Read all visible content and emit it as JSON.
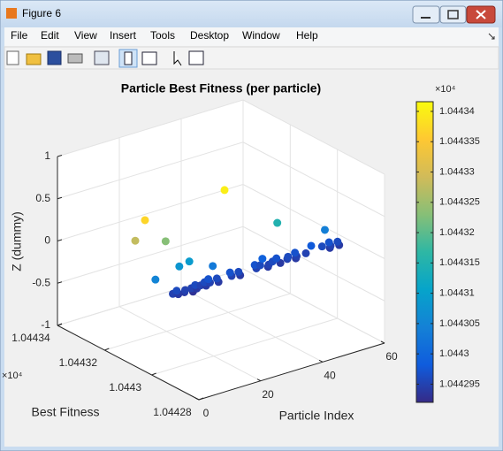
{
  "window": {
    "title": "Figure 6",
    "menu": [
      "File",
      "Edit",
      "View",
      "Insert",
      "Tools",
      "Desktop",
      "Window",
      "Help"
    ]
  },
  "chart_data": {
    "type": "scatter3",
    "title": "Particle Best Fitness (per particle)",
    "xlabel": "Particle Index",
    "ylabel": "Best Fitness",
    "zlabel": "Z (dummy)",
    "y_exponent": "×10⁴",
    "colorbar_exponent": "×10⁴",
    "x": [
      3,
      4,
      5,
      6,
      7,
      8,
      9,
      10,
      11,
      12,
      13,
      14,
      15,
      16,
      17,
      18,
      22,
      23,
      24,
      25,
      30,
      31,
      32,
      33,
      34,
      36,
      37,
      38,
      40,
      41,
      42,
      43,
      44,
      46,
      52,
      53,
      54,
      55,
      56,
      57,
      54,
      26,
      16,
      22,
      52,
      59,
      19,
      15,
      5,
      22,
      35,
      50
    ],
    "y": [
      1.044295,
      1.044294,
      1.044296,
      1.044294,
      1.044295,
      1.044293,
      1.044295,
      1.044294,
      1.044296,
      1.044295,
      1.044294,
      1.044296,
      1.044295,
      1.044297,
      1.044294,
      1.044296,
      1.044295,
      1.044297,
      1.044294,
      1.044296,
      1.044295,
      1.044297,
      1.044296,
      1.044294,
      1.044295,
      1.044296,
      1.044294,
      1.044297,
      1.044295,
      1.044296,
      1.044294,
      1.044295,
      1.044297,
      1.044295,
      1.044296,
      1.044294,
      1.044295,
      1.044297,
      1.044294,
      1.044296,
      1.04434,
      1.044337,
      1.044328,
      1.044323,
      1.044315,
      1.044304,
      1.044309,
      1.044308,
      1.044305,
      1.044303,
      1.044299,
      1.044298
    ],
    "z": [
      0,
      0,
      0,
      0,
      0,
      0,
      0,
      0,
      0,
      0,
      0,
      0,
      0,
      0,
      0,
      0,
      0,
      0,
      0,
      0,
      0,
      0,
      0,
      0,
      0,
      0,
      0,
      0,
      0,
      0,
      0,
      0,
      0,
      0,
      0,
      0,
      0,
      0,
      0,
      0,
      0,
      0,
      0,
      0,
      0,
      0,
      0,
      0,
      0,
      0,
      0,
      0
    ],
    "xlim": [
      0,
      60
    ],
    "xticks": [
      0,
      20,
      40,
      60
    ],
    "ylim": [
      1.04428,
      1.04434
    ],
    "yticks": [
      1.04428,
      1.0443,
      1.04432,
      1.04434
    ],
    "zlim": [
      -1,
      1
    ],
    "zticks": [
      -1,
      -0.5,
      0,
      0.5,
      1
    ],
    "clim": [
      1.044292,
      1.0443416
    ],
    "cticks": [
      1.044295,
      1.0443,
      1.044305,
      1.04431,
      1.044315,
      1.04432,
      1.044325,
      1.04433,
      1.044335,
      1.04434
    ],
    "colormap": [
      "#352a87",
      "#0f5cdd",
      "#1481d6",
      "#06a4ca",
      "#2eb7a4",
      "#87bf77",
      "#d1bb59",
      "#fec832",
      "#f9fb0e"
    ],
    "grid": true
  }
}
